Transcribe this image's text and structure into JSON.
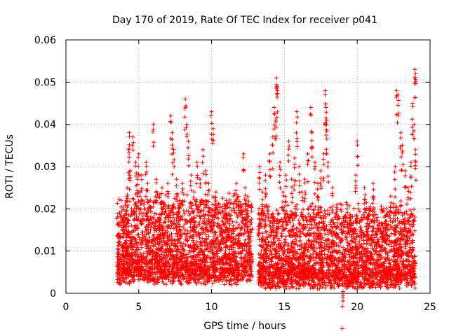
{
  "chart_data": {
    "type": "scatter",
    "title": "Day 170 of 2019, Rate Of TEC Index for receiver p041",
    "xlabel": "GPS time / hours",
    "ylabel": "ROTI / TECUs",
    "xlim": [
      0,
      25
    ],
    "ylim": [
      0,
      0.06
    ],
    "x_ticks": [
      0,
      5,
      10,
      15,
      20,
      25
    ],
    "x_tick_labels": [
      "0",
      "5",
      "10",
      "15",
      "20",
      "25"
    ],
    "y_ticks": [
      0,
      0.01,
      0.02,
      0.03,
      0.04,
      0.05,
      0.06
    ],
    "y_tick_labels": [
      "0",
      "0.01",
      "0.02",
      "0.03",
      "0.04",
      "0.05",
      "0.06"
    ],
    "grid": true,
    "marker": "+",
    "color": "#ff0000",
    "series": [
      {
        "name": "ROTI",
        "points": [
          [
            3.6,
            0.012
          ],
          [
            3.7,
            0.008
          ],
          [
            3.8,
            0.022
          ],
          [
            3.9,
            0.015
          ],
          [
            4.0,
            0.018
          ],
          [
            4.1,
            0.011
          ],
          [
            4.2,
            0.025
          ],
          [
            4.3,
            0.034
          ],
          [
            4.35,
            0.038
          ],
          [
            4.4,
            0.029
          ],
          [
            4.5,
            0.016
          ],
          [
            4.6,
            0.037
          ],
          [
            4.7,
            0.02
          ],
          [
            4.8,
            0.031
          ],
          [
            4.9,
            0.027
          ],
          [
            5.0,
            0.033
          ],
          [
            5.1,
            0.024
          ],
          [
            5.2,
            0.028
          ],
          [
            5.3,
            0.019
          ],
          [
            5.5,
            0.031
          ],
          [
            5.6,
            0.026
          ],
          [
            5.8,
            0.022
          ],
          [
            6.0,
            0.04
          ],
          [
            6.2,
            0.027
          ],
          [
            6.4,
            0.018
          ],
          [
            6.6,
            0.025
          ],
          [
            6.8,
            0.021
          ],
          [
            7.0,
            0.026
          ],
          [
            7.2,
            0.042
          ],
          [
            7.3,
            0.038
          ],
          [
            7.4,
            0.034
          ],
          [
            7.6,
            0.027
          ],
          [
            7.8,
            0.022
          ],
          [
            8.0,
            0.026
          ],
          [
            8.2,
            0.046
          ],
          [
            8.3,
            0.04
          ],
          [
            8.4,
            0.036
          ],
          [
            8.6,
            0.028
          ],
          [
            8.8,
            0.024
          ],
          [
            9.0,
            0.031
          ],
          [
            9.2,
            0.027
          ],
          [
            9.4,
            0.034
          ],
          [
            9.6,
            0.029
          ],
          [
            9.8,
            0.026
          ],
          [
            10.0,
            0.043
          ],
          [
            10.1,
            0.039
          ],
          [
            10.3,
            0.024
          ],
          [
            10.5,
            0.021
          ],
          [
            10.8,
            0.018
          ],
          [
            11.0,
            0.022
          ],
          [
            11.2,
            0.019
          ],
          [
            11.5,
            0.016
          ],
          [
            11.7,
            0.026
          ],
          [
            12.0,
            0.021
          ],
          [
            12.2,
            0.033
          ],
          [
            12.3,
            0.025
          ],
          [
            12.5,
            0.019
          ],
          [
            12.6,
            0.011
          ],
          [
            13.3,
            0.03
          ],
          [
            13.5,
            0.024
          ],
          [
            13.7,
            0.028
          ],
          [
            14.0,
            0.033
          ],
          [
            14.2,
            0.037
          ],
          [
            14.3,
            0.044
          ],
          [
            14.4,
            0.041
          ],
          [
            14.45,
            0.051
          ],
          [
            14.5,
            0.049
          ],
          [
            14.7,
            0.031
          ],
          [
            14.9,
            0.024
          ],
          [
            15.1,
            0.028
          ],
          [
            15.3,
            0.036
          ],
          [
            15.5,
            0.027
          ],
          [
            15.7,
            0.032
          ],
          [
            15.85,
            0.043
          ],
          [
            16.0,
            0.03
          ],
          [
            16.2,
            0.024
          ],
          [
            16.4,
            0.027
          ],
          [
            16.6,
            0.033
          ],
          [
            16.8,
            0.044
          ],
          [
            16.9,
            0.038
          ],
          [
            17.1,
            0.031
          ],
          [
            17.3,
            0.026
          ],
          [
            17.5,
            0.029
          ],
          [
            17.7,
            0.033
          ],
          [
            17.8,
            0.048
          ],
          [
            17.85,
            0.044
          ],
          [
            17.9,
            0.041
          ],
          [
            18.0,
            0.031
          ],
          [
            18.3,
            0.025
          ],
          [
            18.6,
            0.021
          ],
          [
            18.9,
            0.016
          ],
          [
            19.0,
            0.002
          ],
          [
            19.3,
            0.02
          ],
          [
            19.5,
            0.018
          ],
          [
            19.9,
            0.028
          ],
          [
            20.0,
            0.036
          ],
          [
            20.2,
            0.015
          ],
          [
            20.5,
            0.025
          ],
          [
            20.8,
            0.02
          ],
          [
            21.1,
            0.026
          ],
          [
            21.4,
            0.018
          ],
          [
            21.7,
            0.014
          ],
          [
            22.0,
            0.02
          ],
          [
            22.3,
            0.023
          ],
          [
            22.6,
            0.03
          ],
          [
            22.7,
            0.048
          ],
          [
            22.8,
            0.047
          ],
          [
            23.0,
            0.038
          ],
          [
            23.1,
            0.035
          ],
          [
            23.3,
            0.029
          ],
          [
            23.5,
            0.025
          ],
          [
            23.7,
            0.031
          ],
          [
            23.8,
            0.045
          ],
          [
            23.9,
            0.04
          ],
          [
            23.95,
            0.053
          ],
          [
            24.0,
            0.052
          ],
          [
            24.0,
            0.034
          ]
        ],
        "dense_band": {
          "segments": [
            {
              "x_range": [
                3.5,
                12.8
              ],
              "y_min": 0.002,
              "y_typical_max": 0.02
            },
            {
              "x_range": [
                13.2,
                24.0
              ],
              "y_min": 0.001,
              "y_typical_max": 0.018
            }
          ]
        }
      }
    ]
  }
}
